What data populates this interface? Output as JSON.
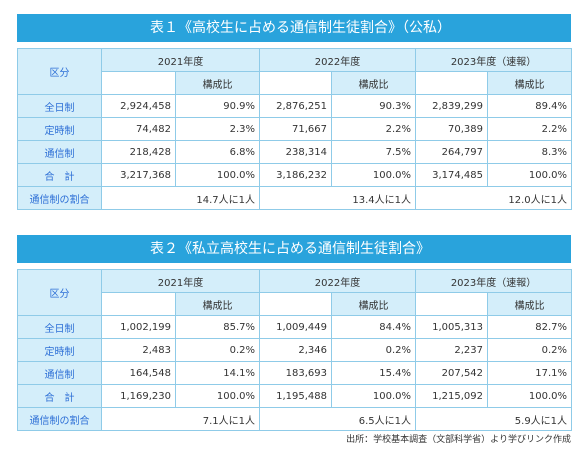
{
  "table1": {
    "title": "表１《高校生に占める通信制生徒割合》（公私）",
    "header_category": "区分",
    "years": [
      "2021年度",
      "2022年度",
      "2023年度（速報）"
    ],
    "ratio_header": "構成比",
    "rows": [
      {
        "label": "全日制",
        "cells": [
          "2,924,458",
          "90.9%",
          "2,876,251",
          "90.3%",
          "2,839,299",
          "89.4%"
        ]
      },
      {
        "label": "定時制",
        "cells": [
          "74,482",
          "2.3%",
          "71,667",
          "2.2%",
          "70,389",
          "2.2%"
        ]
      },
      {
        "label": "通信制",
        "cells": [
          "218,428",
          "6.8%",
          "238,314",
          "7.5%",
          "264,797",
          "8.3%"
        ]
      },
      {
        "label": "合　計",
        "cells": [
          "3,217,368",
          "100.0%",
          "3,186,232",
          "100.0%",
          "3,174,485",
          "100.0%"
        ]
      }
    ],
    "share_label": "通信制の割合",
    "shares": [
      "14.7人に1人",
      "13.4人に1人",
      "12.0人に1人"
    ]
  },
  "table2": {
    "title": "表２《私立高校生に占める通信制生徒割合》",
    "header_category": "区分",
    "years": [
      "2021年度",
      "2022年度",
      "2023年度（速報）"
    ],
    "ratio_header": "構成比",
    "rows": [
      {
        "label": "全日制",
        "cells": [
          "1,002,199",
          "85.7%",
          "1,009,449",
          "84.4%",
          "1,005,313",
          "82.7%"
        ]
      },
      {
        "label": "定時制",
        "cells": [
          "2,483",
          "0.2%",
          "2,346",
          "0.2%",
          "2,237",
          "0.2%"
        ]
      },
      {
        "label": "通信制",
        "cells": [
          "164,548",
          "14.1%",
          "183,693",
          "15.4%",
          "207,542",
          "17.1%"
        ]
      },
      {
        "label": "合　計",
        "cells": [
          "1,169,230",
          "100.0%",
          "1,195,488",
          "100.0%",
          "1,215,092",
          "100.0%"
        ]
      }
    ],
    "share_label": "通信制の割合",
    "shares": [
      "7.1人に1人",
      "6.5人に1人",
      "5.9人に1人"
    ]
  },
  "source_note": "出所：学校基本調査（文部科学省）より学びリンク作成",
  "colors": {
    "banner": "#29a3dc",
    "header_bg": "#d4eefa",
    "border": "#8fcbe8",
    "label_text": "#2d6fd6"
  }
}
